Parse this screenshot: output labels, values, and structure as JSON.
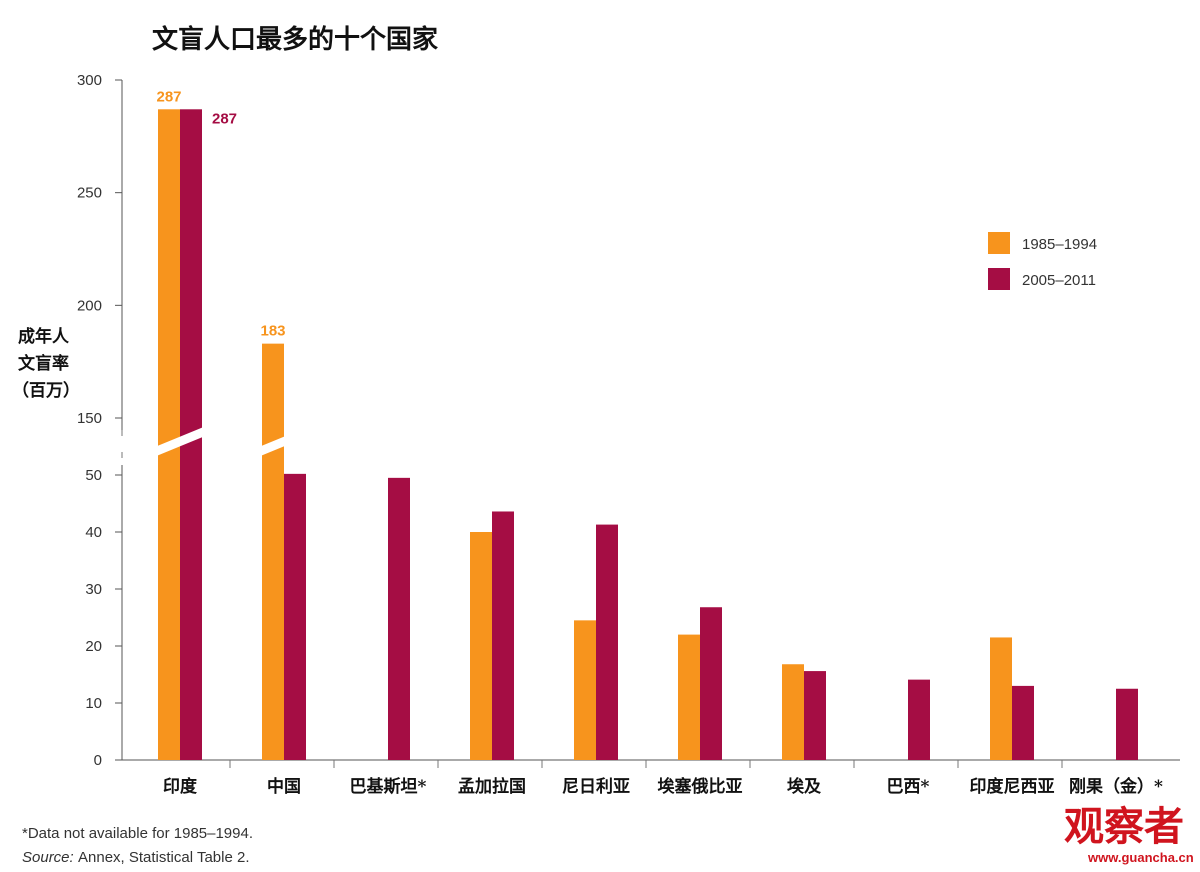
{
  "chart_data": {
    "type": "bar",
    "title": "文盲人口最多的十个国家",
    "ylabel": [
      "成年人",
      "文盲率",
      "（百万）"
    ],
    "xlabel": "",
    "ylim": [
      0,
      300
    ],
    "axis_break": {
      "between": [
        50,
        150
      ]
    },
    "yticks_lower": [
      "0",
      "10",
      "20",
      "30",
      "40",
      "50"
    ],
    "yticks_upper": [
      "150",
      "200",
      "250",
      "300"
    ],
    "categories": [
      "印度",
      "中国",
      "巴基斯坦*",
      "孟加拉国",
      "尼日利亚",
      "埃塞俄比亚",
      "埃及",
      "巴西*",
      "印度尼西亚",
      "刚果（金）*"
    ],
    "series": [
      {
        "name": "1985–1994",
        "color": "#f7941d",
        "values": [
          287,
          183,
          null,
          40,
          24.5,
          22,
          16.8,
          null,
          21.5,
          null
        ],
        "labels": [
          "287",
          "183",
          null,
          null,
          null,
          null,
          null,
          null,
          null,
          null
        ]
      },
      {
        "name": "2005–2011",
        "color": "#a50d44",
        "values": [
          287,
          52,
          49.5,
          43.6,
          41.3,
          26.8,
          15.6,
          14.1,
          13,
          12.5
        ],
        "labels": [
          "287",
          null,
          null,
          null,
          null,
          null,
          null,
          null,
          null,
          null
        ]
      }
    ],
    "legend": "right",
    "grid": false
  },
  "footnotes": {
    "note": "*Data not available for 1985–1994.",
    "source_label": "Source:",
    "source_text": "Annex, Statistical Table 2."
  },
  "watermark": {
    "text": "观察者",
    "url": "www.guancha.cn"
  }
}
